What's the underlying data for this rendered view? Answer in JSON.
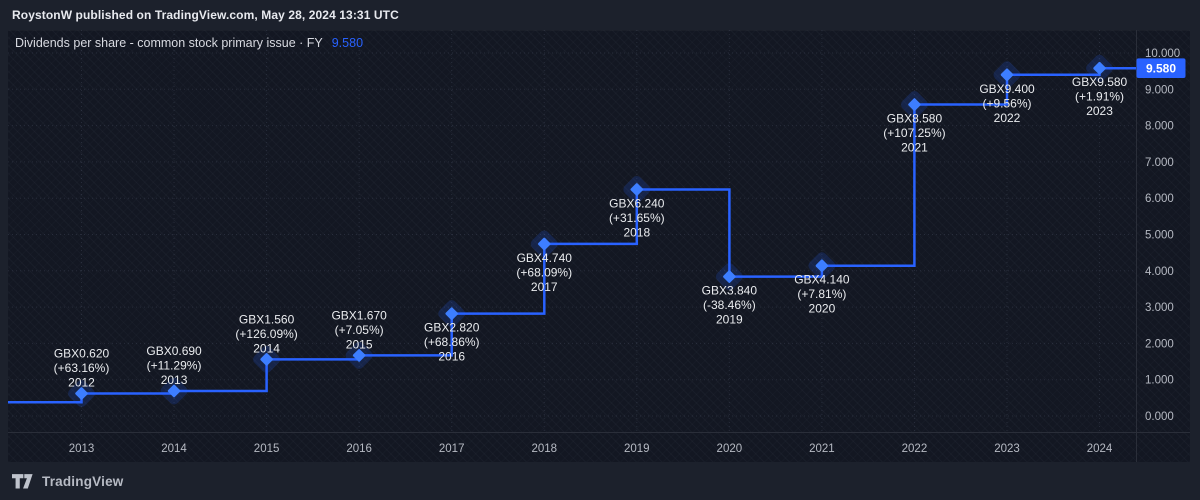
{
  "header": {
    "attribution": "RoystonW published on TradingView.com, May 28, 2024 13:31 UTC"
  },
  "chart": {
    "title": "Dividends per share - common stock primary issue · FY",
    "current_value": "9.580"
  },
  "price_axis": {
    "badge": "9.580"
  },
  "footer": {
    "brand": "TradingView"
  },
  "colors": {
    "accent_blue": "#2962ff",
    "marker_blue": "#3d7eff",
    "pane_bg": "#131722",
    "outer_bg": "#1c212c",
    "axis_text": "#b6bac3",
    "point_label_text": "#eaecef",
    "badge_text": "#ffffff"
  },
  "chart_data": {
    "type": "line",
    "subtype": "step",
    "title": "Dividends per share - common stock primary issue · FY",
    "unit": "GBX",
    "legend_position": "none",
    "grid": true,
    "ylim": [
      0,
      10
    ],
    "y_ticks": [
      "10.000",
      "9.000",
      "8.000",
      "7.000",
      "6.000",
      "5.000",
      "4.000",
      "3.000",
      "2.000",
      "1.000",
      "0.000"
    ],
    "x_ticks": [
      "2013",
      "2014",
      "2015",
      "2016",
      "2017",
      "2018",
      "2019",
      "2020",
      "2021",
      "2022",
      "2023",
      "2024"
    ],
    "lead_in_value": 0.38,
    "current_value": 9.58,
    "series": [
      {
        "name": "Dividends per share - common stock primary issue",
        "points": [
          {
            "year_label": "2012",
            "value": 0.62,
            "price_label": "GBX0.620",
            "change_label": "(+63.16%)",
            "label_position": "above"
          },
          {
            "year_label": "2013",
            "value": 0.69,
            "price_label": "GBX0.690",
            "change_label": "(+11.29%)",
            "label_position": "above"
          },
          {
            "year_label": "2014",
            "value": 1.56,
            "price_label": "GBX1.560",
            "change_label": "(+126.09%)",
            "label_position": "above"
          },
          {
            "year_label": "2015",
            "value": 1.67,
            "price_label": "GBX1.670",
            "change_label": "(+7.05%)",
            "label_position": "above"
          },
          {
            "year_label": "2016",
            "value": 2.82,
            "price_label": "GBX2.820",
            "change_label": "(+68.86%)",
            "label_position": "below"
          },
          {
            "year_label": "2017",
            "value": 4.74,
            "price_label": "GBX4.740",
            "change_label": "(+68.09%)",
            "label_position": "below"
          },
          {
            "year_label": "2018",
            "value": 6.24,
            "price_label": "GBX6.240",
            "change_label": "(+31.65%)",
            "label_position": "below"
          },
          {
            "year_label": "2019",
            "value": 3.84,
            "price_label": "GBX3.840",
            "change_label": "(-38.46%)",
            "label_position": "below"
          },
          {
            "year_label": "2020",
            "value": 4.14,
            "price_label": "GBX4.140",
            "change_label": "(+7.81%)",
            "label_position": "below"
          },
          {
            "year_label": "2021",
            "value": 8.58,
            "price_label": "GBX8.580",
            "change_label": "(+107.25%)",
            "label_position": "below"
          },
          {
            "year_label": "2022",
            "value": 9.4,
            "price_label": "GBX9.400",
            "change_label": "(+9.56%)",
            "label_position": "below"
          },
          {
            "year_label": "2023",
            "value": 9.58,
            "price_label": "GBX9.580",
            "change_label": "(+1.91%)",
            "label_position": "below"
          }
        ]
      }
    ]
  }
}
